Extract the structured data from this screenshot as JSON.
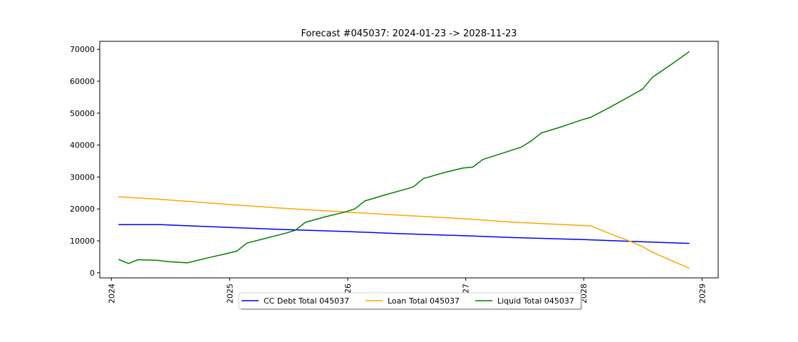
{
  "chart_data": {
    "type": "line",
    "title": "Forecast #045037: 2024-01-23 -> 2028-11-23",
    "xlabel": "",
    "ylabel": "",
    "x_ticks": [
      "2024",
      "2025",
      "2026",
      "2027",
      "2028",
      "2029"
    ],
    "y_ticks": [
      "0",
      "10000",
      "20000",
      "30000",
      "40000",
      "50000",
      "60000",
      "70000"
    ],
    "xlim": [
      "2023-11-26",
      "2029-02-20"
    ],
    "ylim": [
      -1600,
      72500
    ],
    "grid": false,
    "legend_position": "bottom-center",
    "series": [
      {
        "name": "CC Debt Total 045037",
        "color": "#0000ff",
        "points": [
          [
            "2024-01-23",
            15100
          ],
          [
            "2024-06-01",
            15100
          ],
          [
            "2024-09-01",
            14700
          ],
          [
            "2025-01-01",
            14200
          ],
          [
            "2025-06-01",
            13600
          ],
          [
            "2026-01-01",
            12900
          ],
          [
            "2026-06-01",
            12300
          ],
          [
            "2027-01-01",
            11600
          ],
          [
            "2027-06-01",
            11000
          ],
          [
            "2028-01-01",
            10400
          ],
          [
            "2028-06-01",
            9800
          ],
          [
            "2028-11-23",
            9200
          ]
        ]
      },
      {
        "name": "Loan Total 045037",
        "color": "#ffa500",
        "points": [
          [
            "2024-01-23",
            23800
          ],
          [
            "2024-06-01",
            23000
          ],
          [
            "2025-01-01",
            21400
          ],
          [
            "2025-06-01",
            20300
          ],
          [
            "2026-01-01",
            19000
          ],
          [
            "2026-06-01",
            18100
          ],
          [
            "2027-01-01",
            16900
          ],
          [
            "2027-06-01",
            15800
          ],
          [
            "2028-01-01",
            14800
          ],
          [
            "2028-01-23",
            14700
          ],
          [
            "2028-03-23",
            12200
          ],
          [
            "2028-05-23",
            9900
          ],
          [
            "2028-07-01",
            8200
          ],
          [
            "2028-08-01",
            6400
          ],
          [
            "2028-11-23",
            1400
          ]
        ]
      },
      {
        "name": "Liquid Total 045037",
        "color": "#008000",
        "points": [
          [
            "2024-01-23",
            4200
          ],
          [
            "2024-02-23",
            2900
          ],
          [
            "2024-03-23",
            4100
          ],
          [
            "2024-05-23",
            3900
          ],
          [
            "2024-06-23",
            3500
          ],
          [
            "2024-08-23",
            3100
          ],
          [
            "2024-10-23",
            4600
          ],
          [
            "2024-12-23",
            6000
          ],
          [
            "2025-01-23",
            6800
          ],
          [
            "2025-02-23",
            9300
          ],
          [
            "2025-04-23",
            10800
          ],
          [
            "2025-06-23",
            12400
          ],
          [
            "2025-07-23",
            13300
          ],
          [
            "2025-08-23",
            15800
          ],
          [
            "2025-10-23",
            17500
          ],
          [
            "2025-12-23",
            19000
          ],
          [
            "2026-01-23",
            20000
          ],
          [
            "2026-02-23",
            22500
          ],
          [
            "2026-04-23",
            24300
          ],
          [
            "2026-06-23",
            26000
          ],
          [
            "2026-07-23",
            26900
          ],
          [
            "2026-08-23",
            29500
          ],
          [
            "2026-10-23",
            31300
          ],
          [
            "2026-12-23",
            32800
          ],
          [
            "2027-01-23",
            33100
          ],
          [
            "2027-02-23",
            35500
          ],
          [
            "2027-04-23",
            37400
          ],
          [
            "2027-06-23",
            39400
          ],
          [
            "2027-07-23",
            41300
          ],
          [
            "2027-08-23",
            43800
          ],
          [
            "2027-10-23",
            45700
          ],
          [
            "2027-12-23",
            47800
          ],
          [
            "2028-01-23",
            48700
          ],
          [
            "2028-03-23",
            51900
          ],
          [
            "2028-05-23",
            55300
          ],
          [
            "2028-07-01",
            57500
          ],
          [
            "2028-08-01",
            61300
          ],
          [
            "2028-10-01",
            65500
          ],
          [
            "2028-11-23",
            69300
          ]
        ]
      }
    ]
  }
}
